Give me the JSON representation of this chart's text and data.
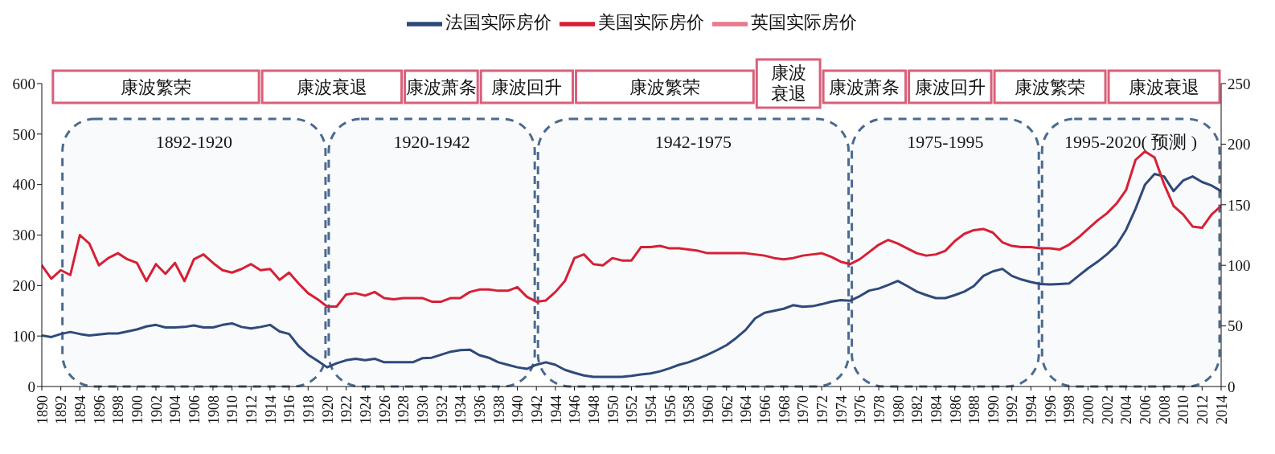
{
  "chart_data": {
    "type": "line",
    "x": [
      1890,
      1891,
      1892,
      1893,
      1894,
      1895,
      1896,
      1897,
      1898,
      1899,
      1900,
      1901,
      1902,
      1903,
      1904,
      1905,
      1906,
      1907,
      1908,
      1909,
      1910,
      1911,
      1912,
      1913,
      1914,
      1915,
      1916,
      1917,
      1918,
      1919,
      1920,
      1921,
      1922,
      1923,
      1924,
      1925,
      1926,
      1927,
      1928,
      1929,
      1930,
      1931,
      1932,
      1933,
      1934,
      1935,
      1936,
      1937,
      1938,
      1939,
      1940,
      1941,
      1942,
      1943,
      1944,
      1945,
      1946,
      1947,
      1948,
      1949,
      1950,
      1951,
      1952,
      1953,
      1954,
      1955,
      1956,
      1957,
      1958,
      1959,
      1960,
      1961,
      1962,
      1963,
      1964,
      1965,
      1966,
      1967,
      1968,
      1969,
      1970,
      1971,
      1972,
      1973,
      1974,
      1975,
      1976,
      1977,
      1978,
      1979,
      1980,
      1981,
      1982,
      1983,
      1984,
      1985,
      1986,
      1987,
      1988,
      1989,
      1990,
      1991,
      1992,
      1993,
      1994,
      1995,
      1996,
      1997,
      1998,
      1999,
      2000,
      2001,
      2002,
      2003,
      2004,
      2005,
      2006,
      2007,
      2008,
      2009,
      2010,
      2011,
      2012,
      2013,
      2014
    ],
    "series": [
      {
        "name": "法国实际房价",
        "color": "#2e4a7a",
        "values": [
          101,
          98,
          104,
          108,
          104,
          101,
          103,
          105,
          105,
          109,
          113,
          119,
          122,
          117,
          117,
          118,
          121,
          117,
          117,
          122,
          125,
          118,
          115,
          118,
          122,
          109,
          104,
          80,
          63,
          51,
          38,
          46,
          52,
          55,
          52,
          55,
          48,
          48,
          48,
          48,
          56,
          57,
          63,
          69,
          72,
          73,
          62,
          57,
          48,
          43,
          38,
          35,
          43,
          48,
          43,
          33,
          27,
          22,
          19,
          19,
          19,
          19,
          21,
          24,
          26,
          30,
          36,
          43,
          48,
          55,
          63,
          72,
          82,
          96,
          112,
          135,
          146,
          150,
          154,
          161,
          158,
          159,
          163,
          168,
          171,
          170,
          179,
          190,
          194,
          201,
          209,
          199,
          188,
          181,
          175,
          175,
          181,
          188,
          199,
          219,
          228,
          233,
          219,
          212,
          207,
          203,
          202,
          203,
          204,
          219,
          234,
          247,
          262,
          280,
          310,
          352,
          400,
          421,
          416,
          387,
          408,
          416,
          405,
          398,
          387
        ]
      },
      {
        "name": "英国实际房价",
        "color": "#e8798f",
        "values": [
          null,
          null,
          null,
          null,
          null,
          null,
          null,
          null,
          null,
          null,
          null,
          null,
          null,
          null,
          null,
          null,
          null,
          null,
          null,
          null,
          null,
          null,
          null,
          null,
          null,
          null,
          null,
          null,
          null,
          null,
          null,
          null,
          null,
          null,
          null,
          null,
          null,
          null,
          null,
          null,
          null,
          null,
          null,
          null,
          null,
          null,
          null,
          null,
          null,
          null,
          null,
          null,
          null,
          null,
          null,
          null,
          null,
          null,
          null,
          null,
          null,
          null,
          null,
          null,
          null,
          null,
          null,
          null,
          null,
          null,
          null,
          null,
          null,
          null,
          null,
          null,
          null,
          null,
          null,
          null,
          null,
          null,
          null,
          null,
          null,
          null,
          null,
          null,
          null,
          null,
          null,
          null,
          null,
          null,
          null,
          null,
          null,
          null,
          null,
          null,
          null,
          null,
          null,
          null,
          null,
          null,
          null,
          null,
          null,
          null,
          null,
          null,
          null,
          null,
          null,
          null,
          null,
          null,
          null,
          null,
          null,
          null,
          null,
          null,
          null
        ]
      },
      {
        "name": "美国实际房价",
        "color": "#d62035",
        "axis": "y2",
        "values": [
          100,
          89,
          96,
          92,
          125,
          118,
          100,
          106,
          110,
          105,
          102,
          87,
          101,
          93,
          102,
          87,
          105,
          109,
          102,
          96,
          94,
          97,
          101,
          96,
          97,
          88,
          94,
          85,
          77,
          72,
          66,
          66,
          76,
          77,
          75,
          78,
          73,
          72,
          73,
          73,
          73,
          70,
          70,
          73,
          73,
          78,
          80,
          80,
          79,
          79,
          82,
          74,
          70,
          71,
          78,
          87,
          106,
          109,
          101,
          100,
          106,
          104,
          104,
          115,
          115,
          116,
          114,
          114,
          113,
          112,
          110,
          110,
          110,
          110,
          110,
          109,
          108,
          106,
          105,
          106,
          108,
          109,
          110,
          107,
          103,
          101,
          105,
          111,
          117,
          121,
          118,
          114,
          110,
          108,
          109,
          112,
          120,
          126,
          129,
          130,
          127,
          119,
          116,
          115,
          115,
          114,
          114,
          113,
          117,
          123,
          130,
          137,
          143,
          151,
          162,
          187,
          194,
          189,
          167,
          149,
          142,
          132,
          131,
          142,
          149
        ]
      }
    ],
    "xlim": [
      1890,
      2014
    ],
    "xticks": [
      1890,
      1892,
      1894,
      1896,
      1898,
      1900,
      1902,
      1904,
      1906,
      1908,
      1910,
      1912,
      1914,
      1916,
      1918,
      1920,
      1922,
      1924,
      1926,
      1928,
      1930,
      1932,
      1934,
      1936,
      1938,
      1940,
      1942,
      1944,
      1946,
      1948,
      1950,
      1952,
      1954,
      1956,
      1958,
      1960,
      1962,
      1964,
      1966,
      1968,
      1970,
      1972,
      1974,
      1976,
      1978,
      1980,
      1982,
      1984,
      1986,
      1988,
      1990,
      1992,
      1994,
      1996,
      1998,
      2000,
      2002,
      2004,
      2006,
      2008,
      2010,
      2012,
      2014
    ],
    "ylim": [
      0,
      600
    ],
    "yticks": [
      0,
      100,
      200,
      300,
      400,
      500,
      600
    ],
    "y2lim": [
      0,
      250
    ],
    "y2ticks": [
      0,
      50,
      100,
      150,
      200,
      250
    ],
    "bands": [
      {
        "axis": "x",
        "from": 1891,
        "to": 1913,
        "label": "康波繁荣",
        "color": "#d9607a"
      },
      {
        "axis": "x",
        "from": 1913,
        "to": 1928,
        "label": "康波衰退",
        "color": "#d9607a"
      },
      {
        "axis": "x",
        "from": 1928,
        "to": 1936,
        "label": "康波萧条",
        "color": "#d9607a"
      },
      {
        "axis": "x",
        "from": 1936,
        "to": 1946,
        "label": "康波回升",
        "color": "#d9607a"
      },
      {
        "axis": "x",
        "from": 1946,
        "to": 1965,
        "label": "康波繁荣",
        "color": "#d9607a"
      },
      {
        "axis": "x",
        "from": 1965,
        "to": 1972,
        "label": "康波衰退",
        "color": "#d9607a"
      },
      {
        "axis": "x",
        "from": 1972,
        "to": 1981,
        "label": "康波萧条",
        "color": "#d9607a"
      },
      {
        "axis": "x",
        "from": 1981,
        "to": 1990,
        "label": "康波回升",
        "color": "#d9607a"
      },
      {
        "axis": "x",
        "from": 1990,
        "to": 2002,
        "label": "康波繁荣",
        "color": "#d9607a"
      },
      {
        "axis": "x",
        "from": 2002,
        "to": 2014,
        "label": "康波衰退",
        "color": "#d9607a"
      },
      {
        "axis": "x",
        "from": 1892,
        "to": 1920,
        "label": "1892-1920",
        "color": "#4a6a90"
      },
      {
        "axis": "x",
        "from": 1920,
        "to": 1942,
        "label": "1920-1942",
        "color": "#4a6a90"
      },
      {
        "axis": "x",
        "from": 1942,
        "to": 1975,
        "label": "1942-1975",
        "color": "#4a6a90"
      },
      {
        "axis": "x",
        "from": 1975,
        "to": 1995,
        "label": "1975-1995",
        "color": "#4a6a90"
      },
      {
        "axis": "x",
        "from": 1995,
        "to": 2014,
        "label": "1995-2020( 预测 )",
        "color": "#4a6a90"
      }
    ],
    "grid": false,
    "legend": "top",
    "line_style": "solid"
  }
}
